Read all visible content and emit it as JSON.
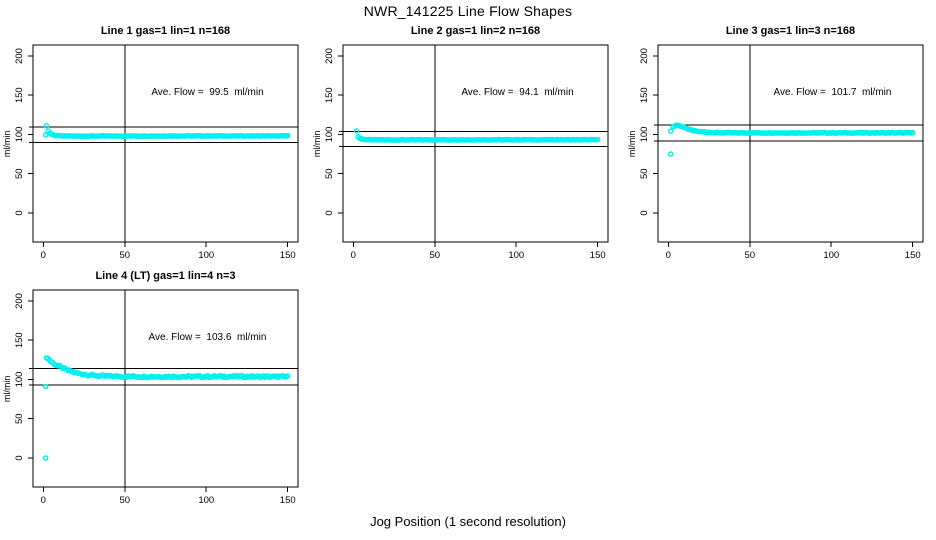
{
  "figure_title": "NWR_141225  Line Flow Shapes",
  "x_axis_label": "Jog Position (1 second resolution)",
  "colors": {
    "points": "#00F0F0",
    "axis": "#000000",
    "background": "#FFFFFF"
  },
  "chart_data": [
    {
      "type": "scatter",
      "title": "Line 1 gas=1 lin=1 n=168",
      "ave_flow_label": "Ave. Flow =  99.5  ml/min",
      "ave_flow": 99.5,
      "ylabel": "ml/min",
      "x_ticks": [
        0,
        50,
        100,
        150
      ],
      "y_ticks": [
        0,
        50,
        100,
        150,
        200
      ],
      "xlim": [
        0,
        150
      ],
      "ylim": [
        0,
        200
      ],
      "vline_x": 50,
      "ref_line_upper": 109.5,
      "ref_line_lower": 89.6,
      "series": {
        "x_start": 3,
        "x_end": 150,
        "x_step": 1,
        "jitter": 0.35,
        "keypoints": [
          [
            3,
            104.5
          ],
          [
            4,
            102
          ],
          [
            5,
            100.5
          ],
          [
            6,
            99.5
          ],
          [
            8,
            98.7
          ],
          [
            10,
            98.3
          ],
          [
            14,
            98
          ],
          [
            20,
            97.9
          ],
          [
            40,
            98
          ],
          [
            80,
            98.1
          ],
          [
            150,
            98.1
          ]
        ]
      },
      "outliers": [
        [
          2,
          111
        ],
        [
          1.5,
          99.5
        ]
      ]
    },
    {
      "type": "scatter",
      "title": "Line 2 gas=1 lin=2 n=168",
      "ave_flow_label": "Ave. Flow =  94.1  ml/min",
      "ave_flow": 94.1,
      "ylabel": "ml/min",
      "x_ticks": [
        0,
        50,
        100,
        150
      ],
      "y_ticks": [
        0,
        50,
        100,
        150,
        200
      ],
      "xlim": [
        0,
        150
      ],
      "ylim": [
        0,
        200
      ],
      "vline_x": 50,
      "ref_line_upper": 103.5,
      "ref_line_lower": 84.7,
      "series": {
        "x_start": 3,
        "x_end": 150,
        "x_step": 1,
        "jitter": 0.3,
        "keypoints": [
          [
            3,
            97
          ],
          [
            4,
            95.3
          ],
          [
            5,
            94.4
          ],
          [
            6,
            93.9
          ],
          [
            8,
            93.5
          ],
          [
            12,
            93.2
          ],
          [
            20,
            93.1
          ],
          [
            60,
            93.2
          ],
          [
            150,
            93.3
          ]
        ]
      },
      "outliers": [
        [
          2,
          104.5
        ]
      ]
    },
    {
      "type": "scatter",
      "title": "Line 3 gas=1 lin=3 n=168",
      "ave_flow_label": "Ave. Flow =  101.7  ml/min",
      "ave_flow": 101.7,
      "ylabel": "ml/min",
      "x_ticks": [
        0,
        50,
        100,
        150
      ],
      "y_ticks": [
        0,
        50,
        100,
        150,
        200
      ],
      "xlim": [
        0,
        150
      ],
      "ylim": [
        0,
        200
      ],
      "vline_x": 50,
      "ref_line_upper": 111.9,
      "ref_line_lower": 91.5,
      "series": {
        "x_start": 3,
        "x_end": 150,
        "x_step": 1,
        "jitter": 0.4,
        "keypoints": [
          [
            3,
            109.5
          ],
          [
            4,
            111
          ],
          [
            5,
            111.8
          ],
          [
            7,
            111.3
          ],
          [
            9,
            109.5
          ],
          [
            12,
            107
          ],
          [
            15,
            105
          ],
          [
            19,
            103.7
          ],
          [
            25,
            102.7
          ],
          [
            32,
            102.2
          ],
          [
            45,
            102
          ],
          [
            150,
            102
          ]
        ]
      },
      "outliers": [
        [
          1.5,
          104
        ],
        [
          1.5,
          75
        ]
      ]
    },
    {
      "type": "scatter",
      "title": "Line 4 (LT) gas=1 lin=4 n=3",
      "ave_flow_label": "Ave. Flow =  103.6  ml/min",
      "ave_flow": 103.6,
      "ylabel": "ml/min",
      "x_ticks": [
        0,
        50,
        100,
        150
      ],
      "y_ticks": [
        0,
        50,
        100,
        150,
        200
      ],
      "xlim": [
        0,
        150
      ],
      "ylim": [
        0,
        200
      ],
      "vline_x": 50,
      "ref_line_upper": 114.0,
      "ref_line_lower": 93.2,
      "series": {
        "x_start": 2,
        "x_end": 150,
        "x_step": 1,
        "jitter": 1.2,
        "keypoints": [
          [
            2,
            128.5
          ],
          [
            3,
            126.5
          ],
          [
            4,
            124.5
          ],
          [
            5,
            122.5
          ],
          [
            6,
            121
          ],
          [
            8,
            118.5
          ],
          [
            10,
            116.5
          ],
          [
            12,
            114.5
          ],
          [
            14,
            112.5
          ],
          [
            16,
            111
          ],
          [
            19,
            109
          ],
          [
            22,
            107.5
          ],
          [
            26,
            106.2
          ],
          [
            30,
            105.3
          ],
          [
            35,
            104.6
          ],
          [
            40,
            104.2
          ],
          [
            50,
            103.8
          ],
          [
            70,
            103.6
          ],
          [
            100,
            103.7
          ],
          [
            150,
            103.5
          ]
        ]
      },
      "outliers": [
        [
          1.5,
          91
        ],
        [
          1.5,
          0
        ]
      ]
    }
  ]
}
